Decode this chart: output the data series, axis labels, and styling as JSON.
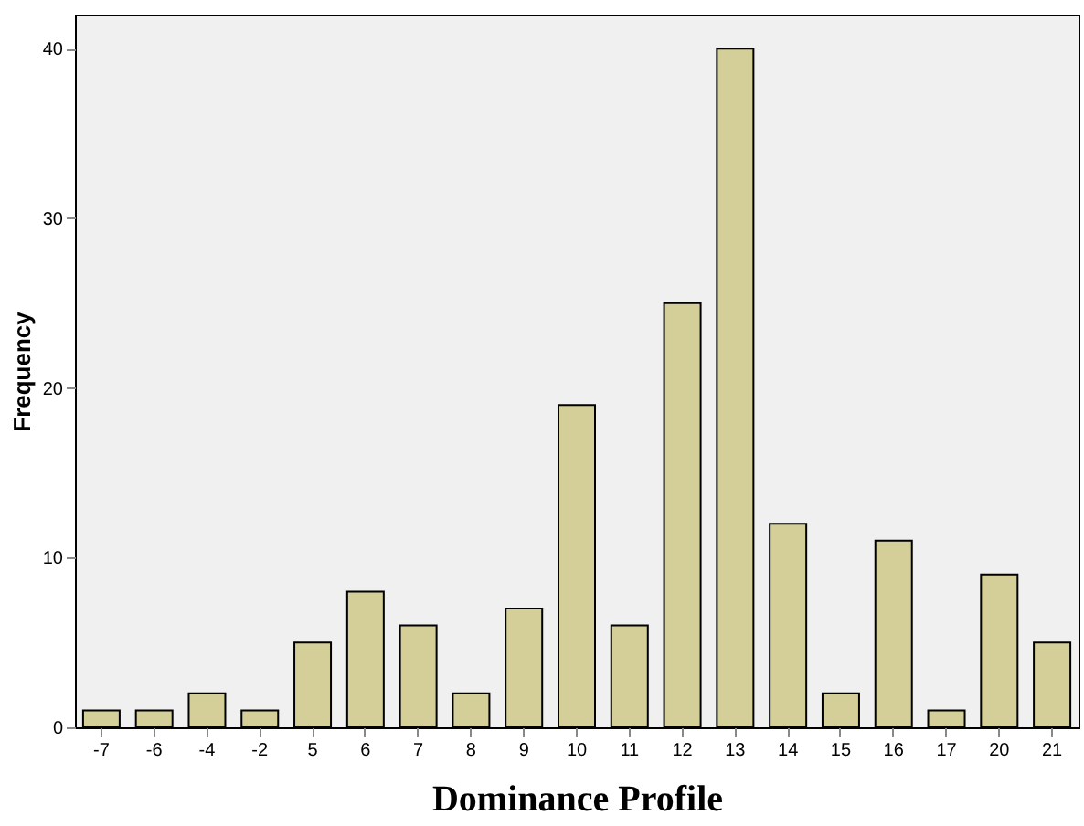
{
  "chart_data": {
    "type": "bar",
    "xlabel": "Dominance Profile",
    "ylabel": "Frequency",
    "categories": [
      "-7",
      "-6",
      "-4",
      "-2",
      "5",
      "6",
      "7",
      "8",
      "9",
      "10",
      "11",
      "12",
      "13",
      "14",
      "15",
      "16",
      "17",
      "20",
      "21"
    ],
    "values": [
      1,
      1,
      2,
      1,
      5,
      8,
      6,
      2,
      7,
      19,
      6,
      25,
      40,
      12,
      2,
      11,
      1,
      9,
      5
    ],
    "color": "#d4cf98",
    "ylim": [
      0,
      42
    ],
    "yticks": [
      0,
      10,
      20,
      30,
      40
    ],
    "grid": false
  }
}
